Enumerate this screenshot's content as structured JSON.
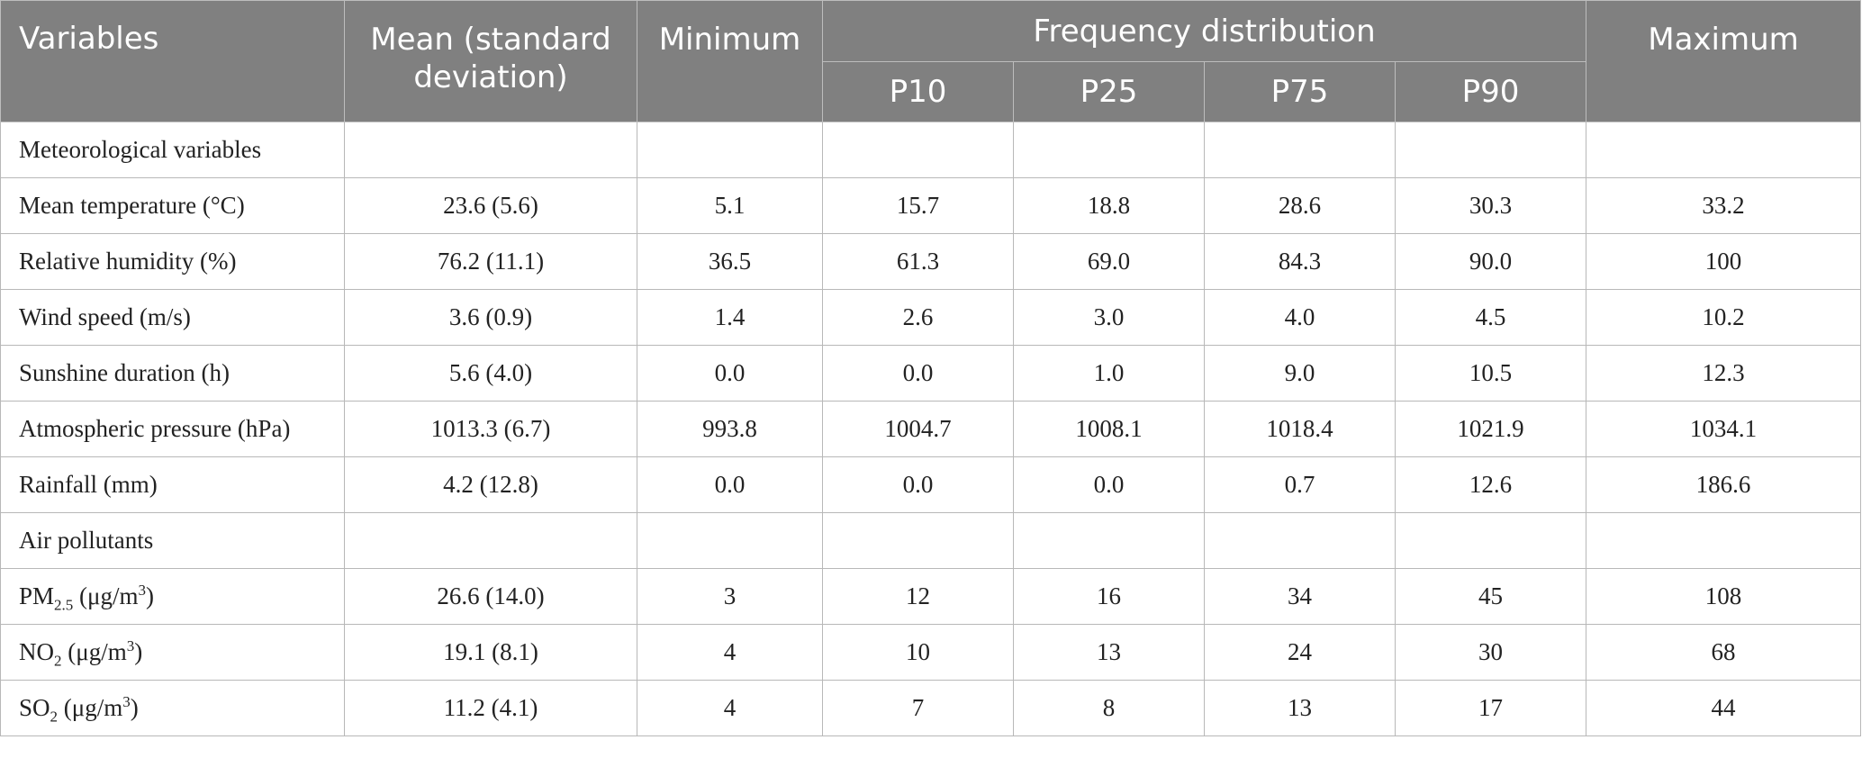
{
  "header": {
    "variables": "Variables",
    "mean": "Mean (standard deviation)",
    "minimum": "Minimum",
    "freq": "Frequency distribution",
    "p10": "P10",
    "p25": "P25",
    "p75": "P75",
    "p90": "P90",
    "maximum": "Maximum"
  },
  "sections": {
    "meteo": "Meteorological variables",
    "air": "Air pollutants"
  },
  "rows": [
    {
      "label": "Mean temperature (°C)",
      "mean": "23.6 (5.6)",
      "min": "5.1",
      "p10": "15.7",
      "p25": "18.8",
      "p75": "28.6",
      "p90": "30.3",
      "max": "33.2"
    },
    {
      "label": "Relative humidity (%)",
      "mean": "76.2 (11.1)",
      "min": "36.5",
      "p10": "61.3",
      "p25": "69.0",
      "p75": "84.3",
      "p90": "90.0",
      "max": "100"
    },
    {
      "label": "Wind speed (m/s)",
      "mean": "3.6 (0.9)",
      "min": "1.4",
      "p10": "2.6",
      "p25": "3.0",
      "p75": "4.0",
      "p90": "4.5",
      "max": "10.2"
    },
    {
      "label": "Sunshine duration (h)",
      "mean": "5.6 (4.0)",
      "min": "0.0",
      "p10": "0.0",
      "p25": "1.0",
      "p75": "9.0",
      "p90": "10.5",
      "max": "12.3"
    },
    {
      "label": "Atmospheric pressure (hPa)",
      "mean": "1013.3 (6.7)",
      "min": "993.8",
      "p10": "1004.7",
      "p25": "1008.1",
      "p75": "1018.4",
      "p90": "1021.9",
      "max": "1034.1"
    },
    {
      "label": "Rainfall (mm)",
      "mean": "4.2 (12.8)",
      "min": "0.0",
      "p10": "0.0",
      "p25": "0.0",
      "p75": "0.7",
      "p90": "12.6",
      "max": "186.6"
    },
    {
      "label_base": "PM",
      "label_sub": "2.5",
      "label_mid": " (μg/m",
      "label_sup": "3",
      "label_end": ")",
      "mean": "26.6 (14.0)",
      "min": "3",
      "p10": "12",
      "p25": "16",
      "p75": "34",
      "p90": "45",
      "max": "108"
    },
    {
      "label_base": "NO",
      "label_sub": "2",
      "label_mid": " (μg/m",
      "label_sup": "3",
      "label_end": ")",
      "mean": "19.1 (8.1)",
      "min": "4",
      "p10": "10",
      "p25": "13",
      "p75": "24",
      "p90": "30",
      "max": "68"
    },
    {
      "label_base": "SO",
      "label_sub": "2",
      "label_mid": " (μg/m",
      "label_sup": "3",
      "label_end": ")",
      "mean": "11.2 (4.1)",
      "min": "4",
      "p10": "7",
      "p25": "8",
      "p75": "13",
      "p90": "17",
      "max": "44"
    }
  ]
}
